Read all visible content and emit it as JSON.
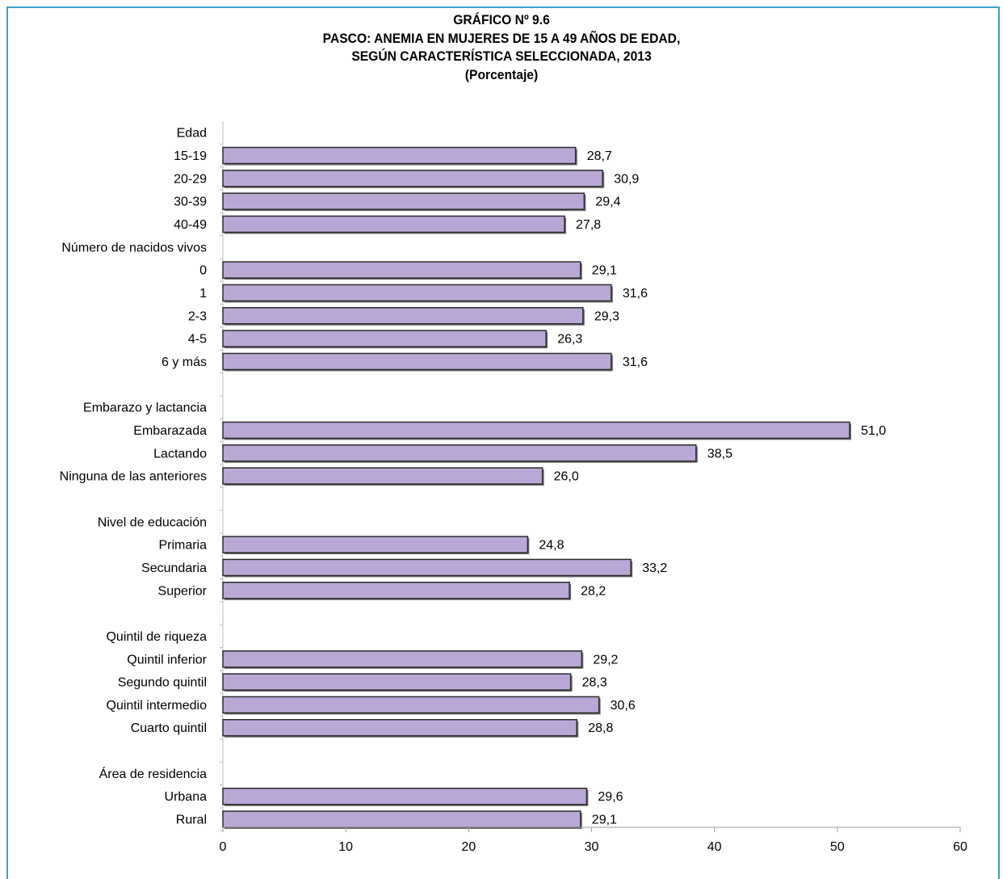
{
  "title_lines": [
    "GRÁFICO Nº 9.6",
    "PASCO: ANEMIA EN MUJERES DE 15 A 49 AÑOS DE EDAD,",
    "SEGÚN CARACTERÍSTICA SELECCIONADA, 2013",
    "(Porcentaje)"
  ],
  "chart_data": {
    "type": "bar",
    "orientation": "horizontal",
    "title": "PASCO: ANEMIA EN MUJERES DE 15 A 49 AÑOS DE EDAD, SEGÚN CARACTERÍSTICA SELECCIONADA, 2013",
    "subtitle": "(Porcentaje)",
    "xlim": [
      0,
      60
    ],
    "ticks": [
      "0",
      "10",
      "20",
      "30",
      "40",
      "50",
      "60"
    ],
    "tick_values": [
      0,
      10,
      20,
      30,
      40,
      50,
      60
    ],
    "bar_color": "#b9a8d6",
    "rows": [
      {
        "label": "Edad",
        "header": true
      },
      {
        "label": "15-19",
        "value": 28.7,
        "value_label": "28,7"
      },
      {
        "label": "20-29",
        "value": 30.9,
        "value_label": "30,9"
      },
      {
        "label": "30-39",
        "value": 29.4,
        "value_label": "29,4"
      },
      {
        "label": "40-49",
        "value": 27.8,
        "value_label": "27,8"
      },
      {
        "label": "Número de nacidos vivos",
        "header": true
      },
      {
        "label": "0",
        "value": 29.1,
        "value_label": "29,1"
      },
      {
        "label": "1",
        "value": 31.6,
        "value_label": "31,6"
      },
      {
        "label": "2-3",
        "value": 29.3,
        "value_label": "29,3"
      },
      {
        "label": "4-5",
        "value": 26.3,
        "value_label": "26,3"
      },
      {
        "label": "6 y más",
        "value": 31.6,
        "value_label": "31,6"
      },
      {
        "label": "",
        "spacer": true
      },
      {
        "label": "Embarazo y lactancia",
        "header": true
      },
      {
        "label": "Embarazada",
        "value": 51.0,
        "value_label": "51,0"
      },
      {
        "label": "Lactando",
        "value": 38.5,
        "value_label": "38,5"
      },
      {
        "label": "Ninguna de las anteriores",
        "value": 26.0,
        "value_label": "26,0"
      },
      {
        "label": "",
        "spacer": true
      },
      {
        "label": "Nivel de educación",
        "header": true
      },
      {
        "label": "Primaria",
        "value": 24.8,
        "value_label": "24,8"
      },
      {
        "label": "Secundaria",
        "value": 33.2,
        "value_label": "33,2"
      },
      {
        "label": "Superior",
        "value": 28.2,
        "value_label": "28,2"
      },
      {
        "label": "",
        "spacer": true
      },
      {
        "label": "Quintil de riqueza",
        "header": true
      },
      {
        "label": "Quintil inferior",
        "value": 29.2,
        "value_label": "29,2"
      },
      {
        "label": "Segundo quintil",
        "value": 28.3,
        "value_label": "28,3"
      },
      {
        "label": "Quintil intermedio",
        "value": 30.6,
        "value_label": "30,6"
      },
      {
        "label": "Cuarto quintil",
        "value": 28.8,
        "value_label": "28,8"
      },
      {
        "label": "",
        "spacer": true
      },
      {
        "label": "Área de residencia",
        "header": true
      },
      {
        "label": "Urbana",
        "value": 29.6,
        "value_label": "29,6"
      },
      {
        "label": "Rural",
        "value": 29.1,
        "value_label": "29,1"
      }
    ]
  }
}
